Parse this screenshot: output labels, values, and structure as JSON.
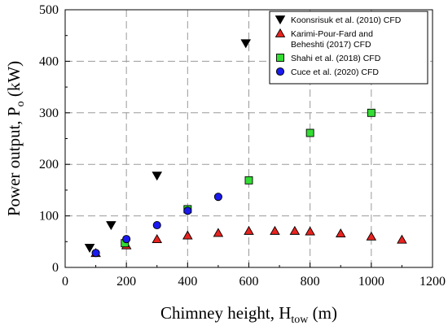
{
  "chart_data": {
    "type": "scatter",
    "xlabel": {
      "main": "Chimney height, H",
      "sub": "tow",
      "unit": " (m)"
    },
    "ylabel": {
      "main": "Power output, P",
      "sub": "o",
      "unit": " (kW)"
    },
    "xlim": [
      0,
      1200
    ],
    "ylim": [
      0,
      500
    ],
    "x_ticks": [
      0,
      200,
      400,
      600,
      800,
      1000,
      1200
    ],
    "y_ticks": [
      0,
      100,
      200,
      300,
      400,
      500
    ],
    "x_tick_labels": [
      "0",
      "200",
      "400",
      "600",
      "800",
      "1000",
      "1200"
    ],
    "y_tick_labels": [
      "0",
      "100",
      "200",
      "300",
      "400",
      "500"
    ],
    "grid": true,
    "legend_position": "top-right",
    "series": [
      {
        "name": "Koonsrisuk et al. (2010) CFD",
        "legend_lines": [
          "Koonsrisuk et al. (2010) CFD"
        ],
        "marker": "triangle-down",
        "color": "#000000",
        "points": [
          [
            80,
            38
          ],
          [
            150,
            82
          ],
          [
            300,
            178
          ],
          [
            590,
            435
          ]
        ]
      },
      {
        "name": "Karimi-Pour-Fard and Beheshti (2017) CFD",
        "legend_lines": [
          "Karimi-Pour-Fard and",
          "Beheshti (2017) CFD"
        ],
        "marker": "triangle-up",
        "color": "#e8231f",
        "points": [
          [
            100,
            28
          ],
          [
            200,
            43
          ],
          [
            300,
            55
          ],
          [
            400,
            62
          ],
          [
            500,
            67
          ],
          [
            600,
            71
          ],
          [
            685,
            71
          ],
          [
            750,
            71
          ],
          [
            800,
            70
          ],
          [
            900,
            66
          ],
          [
            1000,
            60
          ],
          [
            1100,
            54
          ]
        ]
      },
      {
        "name": "Shahi et al. (2018) CFD",
        "legend_lines": [
          "Shahi et al. (2018) CFD"
        ],
        "marker": "square",
        "color": "#33dd33",
        "points": [
          [
            195,
            47
          ],
          [
            400,
            113
          ],
          [
            600,
            169
          ],
          [
            800,
            261
          ],
          [
            1000,
            300
          ]
        ]
      },
      {
        "name": "Cuce et al. (2020) CFD",
        "legend_lines": [
          "Cuce et al. (2020) CFD"
        ],
        "marker": "circle",
        "color": "#1a1aee",
        "points": [
          [
            100,
            28
          ],
          [
            200,
            55
          ],
          [
            300,
            82
          ],
          [
            400,
            110
          ],
          [
            500,
            137
          ]
        ]
      }
    ]
  }
}
